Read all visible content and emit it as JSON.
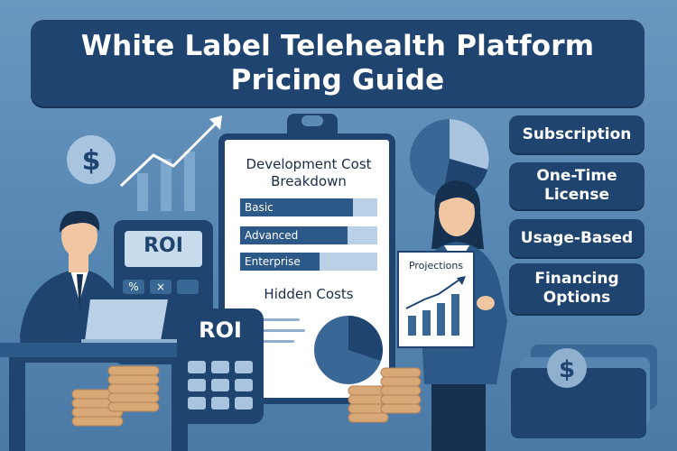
{
  "banner": {
    "line1": "White Label Telehealth Platform",
    "line2": "Pricing Guide"
  },
  "pricing_models": [
    {
      "lines": [
        "Subscription"
      ]
    },
    {
      "lines": [
        "One-Time",
        "License"
      ]
    },
    {
      "lines": [
        "Usage-Based"
      ]
    },
    {
      "lines": [
        "Financing",
        "Options"
      ]
    }
  ],
  "clipboard": {
    "title_line1": "Development Cost",
    "title_line2": "Breakdown",
    "bars": [
      {
        "label": "Basic",
        "fill": 0.82
      },
      {
        "label": "Advanced",
        "fill": 0.78
      },
      {
        "label": "Enterprise",
        "fill": 0.58
      }
    ],
    "hidden_costs": "Hidden Costs"
  },
  "projection_card": {
    "title": "Projections"
  },
  "calculators": {
    "back_label": "ROI",
    "front_label": "ROI",
    "key_percent": "%",
    "key_times": "×"
  },
  "icons": {
    "dollar_badge": "dollar-icon",
    "trend_arrow": "trend-arrow-icon",
    "pie_chart": "pie-chart-icon",
    "cash": "cash-icon"
  },
  "colors": {
    "navy": "#1f4470",
    "background": "#5b8ab5",
    "coin": "#d9a877"
  }
}
